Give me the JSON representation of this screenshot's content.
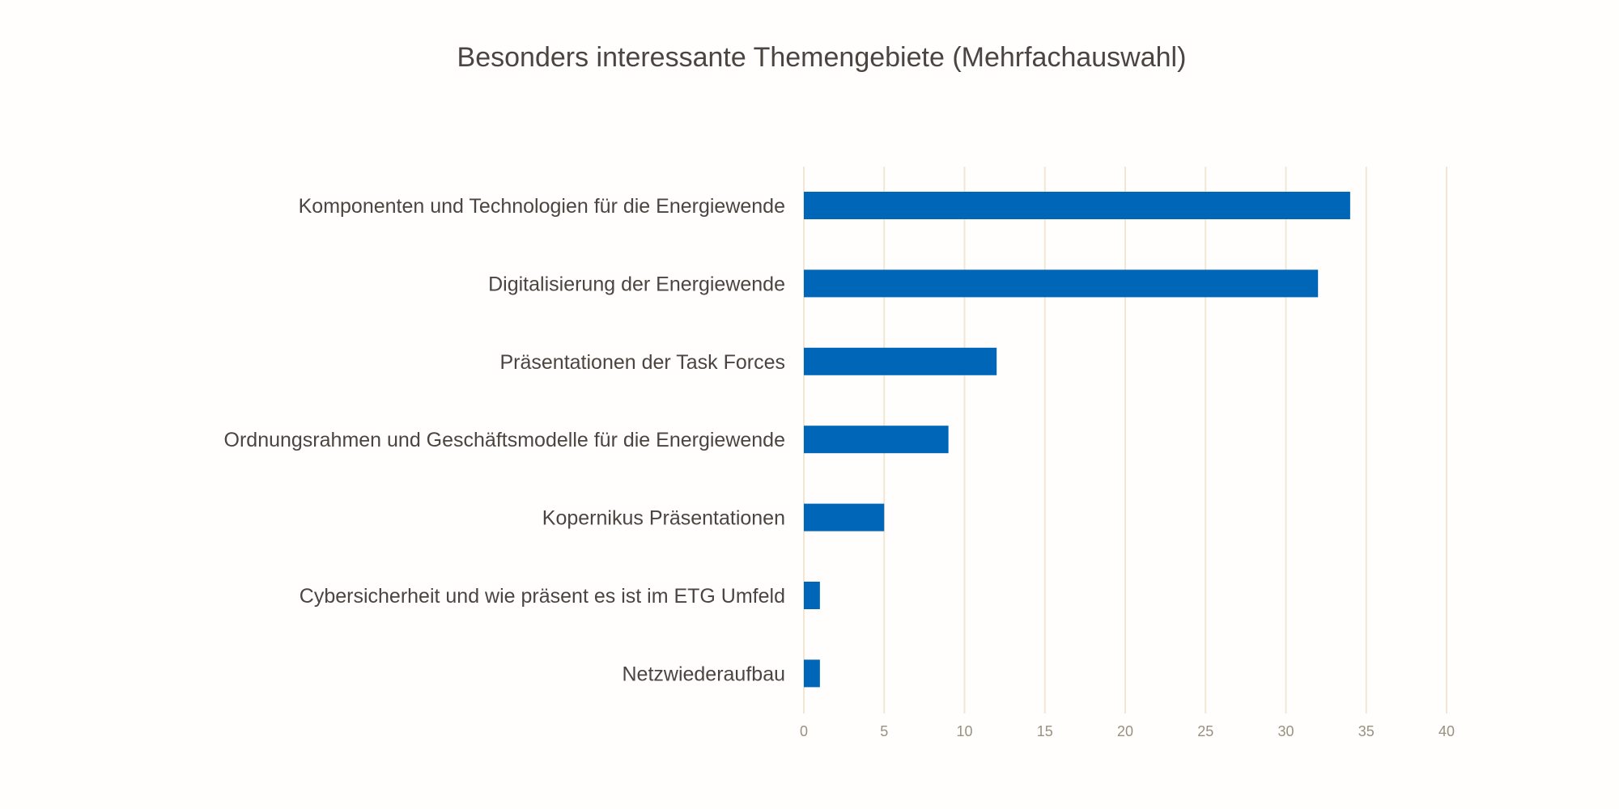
{
  "chart_data": {
    "type": "bar",
    "orientation": "horizontal",
    "title": "Besonders interessante Themengebiete (Mehrfachauswahl)",
    "categories": [
      "Komponenten und Technologien für die Energiewende",
      "Digitalisierung der Energiewende",
      "Präsentationen der Task Forces",
      "Ordnungsrahmen und Geschäftsmodelle für die Energiewende",
      "Kopernikus Präsentationen",
      "Cybersicherheit und wie präsent es ist im ETG Umfeld",
      "Netzwiederaufbau"
    ],
    "values": [
      34,
      32,
      12,
      9,
      5,
      1,
      1
    ],
    "xlim": [
      0,
      40
    ],
    "xticks": [
      "0",
      "5",
      "10",
      "15",
      "20",
      "25",
      "30",
      "35",
      "40"
    ],
    "grid": true,
    "legend": "none",
    "colors": {
      "bar": "#0066b8",
      "grid": "#f2e6d4",
      "text": "#4a4540",
      "tick": "#9a9080",
      "background": "#fffefd"
    }
  }
}
